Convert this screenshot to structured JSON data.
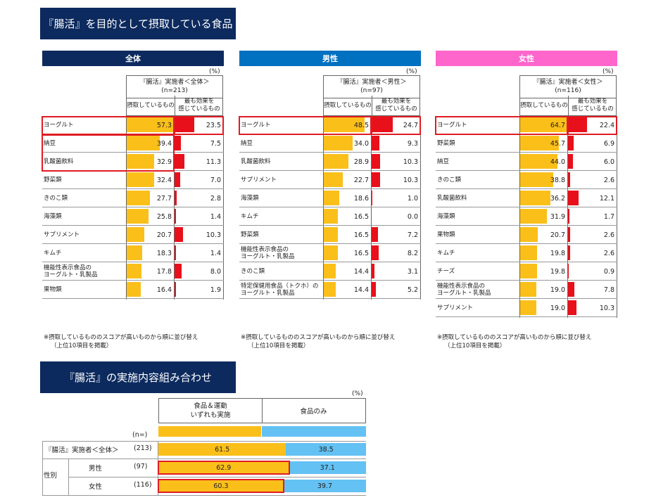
{
  "title1": "『腸活』を目的として摂取している食品",
  "title2": "『腸活』の実施内容組み合わせ",
  "unit": "(%)",
  "colors": {
    "navy": "#0c2a5e",
    "blue": "#0070c0",
    "pink": "#ff66cc",
    "yellow": "#fbbf1a",
    "red": "#e8101a",
    "lightblue": "#63c1f3",
    "highlight": "#e01b22"
  },
  "col1": "摂取しているもの",
  "col2": "最も効果を\n感じているもの",
  "note_line1": "※摂取しているもののスコアが高いものから順に並び替え",
  "note_line2": "（上位10項目を掲載）",
  "chart_data": [
    {
      "type": "bar",
      "title": "全体",
      "group": "『腸活』実施者＜全体＞",
      "n": "(n=213)",
      "categories": [
        "ヨーグルト",
        "納豆",
        "乳酸菌飲料",
        "野菜類",
        "きのこ類",
        "海藻類",
        "サプリメント",
        "キムチ",
        "機能性表示食品の\nヨーグルト・乳製品",
        "果物類"
      ],
      "series": [
        {
          "name": "摂取しているもの",
          "values": [
            57.3,
            39.4,
            32.9,
            32.4,
            27.7,
            25.8,
            20.7,
            18.3,
            17.8,
            16.4
          ]
        },
        {
          "name": "最も効果を感じているもの",
          "values": [
            23.5,
            7.5,
            11.3,
            7.0,
            2.8,
            1.4,
            10.3,
            1.4,
            8.0,
            1.9
          ]
        }
      ]
    },
    {
      "type": "bar",
      "title": "男性",
      "group": "『腸活』実施者＜男性＞",
      "n": "(n=97)",
      "categories": [
        "ヨーグルト",
        "納豆",
        "乳酸菌飲料",
        "サプリメント",
        "海藻類",
        "キムチ",
        "野菜類",
        "機能性表示食品の\nヨーグルト・乳製品",
        "きのこ類",
        "特定保健用食品（トクホ）の\nヨーグルト・乳製品"
      ],
      "series": [
        {
          "name": "摂取しているもの",
          "values": [
            48.5,
            34.0,
            28.9,
            22.7,
            18.6,
            16.5,
            16.5,
            16.5,
            14.4,
            14.4
          ]
        },
        {
          "name": "最も効果を感じているもの",
          "values": [
            24.7,
            9.3,
            10.3,
            10.3,
            1.0,
            0.0,
            7.2,
            8.2,
            3.1,
            5.2
          ]
        }
      ]
    },
    {
      "type": "bar",
      "title": "女性",
      "group": "『腸活』実施者＜女性＞",
      "n": "(n=116)",
      "categories": [
        "ヨーグルト",
        "野菜類",
        "納豆",
        "きのこ類",
        "乳酸菌飲料",
        "海藻類",
        "果物類",
        "キムチ",
        "チーズ",
        "機能性表示食品の\nヨーグルト・乳製品",
        "サプリメント"
      ],
      "series": [
        {
          "name": "摂取しているもの",
          "values": [
            64.7,
            45.7,
            44.0,
            38.8,
            36.2,
            31.9,
            20.7,
            19.8,
            19.8,
            19.0,
            19.0
          ]
        },
        {
          "name": "最も効果を感じているもの",
          "values": [
            22.4,
            6.9,
            6.0,
            2.6,
            12.1,
            1.7,
            2.6,
            2.6,
            0.9,
            7.8,
            10.3
          ]
        }
      ]
    },
    {
      "type": "bar",
      "stacked": true,
      "title": "『腸活』の実施内容組み合わせ",
      "n_label": "(n=)",
      "side_label": "性別",
      "categories": [
        "『腸活』実施者＜全体＞",
        "男性",
        "女性"
      ],
      "n": [
        "(213)",
        "(97)",
        "(116)"
      ],
      "series": [
        {
          "name": "食品＆運動\nいずれも実施",
          "values": [
            61.5,
            62.9,
            60.3
          ]
        },
        {
          "name": "食品のみ",
          "values": [
            38.5,
            37.1,
            39.7
          ]
        }
      ]
    }
  ]
}
